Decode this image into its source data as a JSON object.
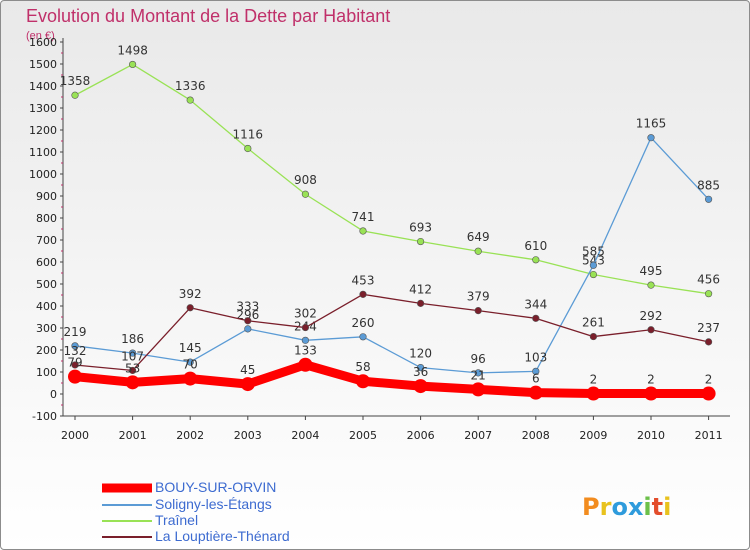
{
  "chart_data": {
    "type": "line",
    "title": "Evolution du Montant de la Dette par Habitant",
    "subtitle": "(en €)",
    "categories": [
      "2000",
      "2001",
      "2002",
      "2003",
      "2004",
      "2005",
      "2006",
      "2007",
      "2008",
      "2009",
      "2010",
      "2011"
    ],
    "yticks": [
      -100,
      0,
      100,
      200,
      300,
      400,
      500,
      600,
      700,
      800,
      900,
      1000,
      1100,
      1200,
      1300,
      1400,
      1500,
      1600
    ],
    "ylim": [
      -100,
      1600
    ],
    "grid": false,
    "legend_position": "bottom-left",
    "series": [
      {
        "name": "BOUY-SUR-ORVIN",
        "color": "#ff0000",
        "values": [
          79,
          53,
          70,
          45,
          133,
          58,
          36,
          21,
          6,
          2,
          2,
          2
        ]
      },
      {
        "name": "Soligny-les-Étangs",
        "color": "#5b9bd5",
        "values": [
          219,
          186,
          145,
          296,
          244,
          260,
          120,
          96,
          103,
          585,
          1165,
          885
        ]
      },
      {
        "name": "Traînel",
        "color": "#99e255",
        "values": [
          1358,
          1498,
          1336,
          1116,
          908,
          741,
          693,
          649,
          610,
          543,
          495,
          456
        ]
      },
      {
        "name": "La Louptière-Thénard",
        "color": "#7a1f2b",
        "values": [
          132,
          107,
          392,
          333,
          302,
          453,
          412,
          379,
          344,
          261,
          292,
          237
        ]
      }
    ]
  },
  "logo": {
    "text": "Proxiti",
    "letters": [
      "P",
      "r",
      "o",
      "x",
      "i",
      "t",
      "i"
    ]
  }
}
